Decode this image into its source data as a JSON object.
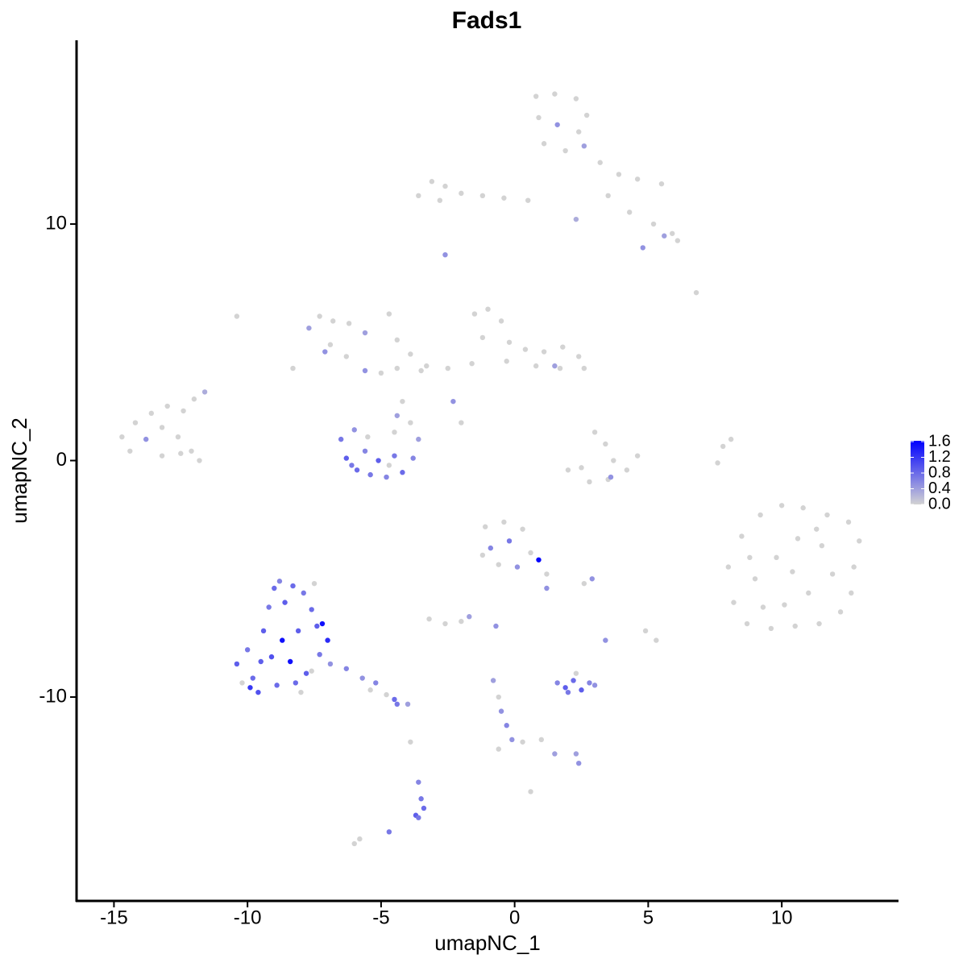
{
  "chart_data": {
    "type": "scatter",
    "title": "Fads1",
    "x_label": "umapNC_1",
    "y_label": "umapNC_2",
    "xlim": [
      -16.4,
      14.37
    ],
    "ylim": [
      -18.62,
      17.77
    ],
    "xticks": [
      -15,
      -10,
      -5,
      0,
      5,
      10
    ],
    "yticks": [
      -10,
      0,
      10
    ],
    "color_low": "#d3d3d3",
    "color_high": "#0000ff",
    "colorbar_lim": [
      0,
      1.62
    ],
    "colorbar_ticks": [
      {
        "value": 0,
        "label": "0.0"
      },
      {
        "value": 0.4,
        "label": "0.4"
      },
      {
        "value": 0.8,
        "label": "0.8"
      },
      {
        "value": 1.2,
        "label": "1.2"
      },
      {
        "value": 1.6,
        "label": "1.6"
      }
    ],
    "x": [
      0.8,
      1.5,
      2.3,
      2.7,
      0.9,
      1.6,
      2.4,
      1.1,
      1.9,
      2.6,
      3.2,
      3.9,
      4.6,
      5.5,
      3.5,
      4.3,
      5.2,
      5.9,
      6.1,
      4.8,
      5.6,
      2.3,
      6.8,
      -3.6,
      -3.1,
      -2.6,
      -2.0,
      -1.2,
      -0.4,
      0.5,
      -2.8,
      -2.6,
      -1.5,
      -1.0,
      -0.5,
      -1.2,
      -0.2,
      0.4,
      1.1,
      1.8,
      2.4,
      2.6,
      1.7,
      0.8,
      -0.3,
      -1.6,
      -2.5,
      -3.3,
      1.5,
      -2.3,
      -2.0,
      -14.7,
      -14.2,
      -13.6,
      -13.0,
      -12.4,
      -14.4,
      -13.8,
      -13.2,
      -12.6,
      -12.1,
      -11.8,
      -13.2,
      -12.5,
      -12.0,
      -11.6,
      -7.7,
      -7.3,
      -6.8,
      -6.2,
      -5.6,
      -6.9,
      -7.1,
      -6.3,
      -5.6,
      -5.0,
      -4.4,
      -4.7,
      -4.4,
      -3.9,
      -3.5,
      -4.2,
      -10.4,
      -8.3,
      -4.4,
      -6.5,
      -6.3,
      -5.9,
      -5.4,
      -4.8,
      -4.2,
      -3.8,
      -3.6,
      -3.9,
      -4.5,
      -5.5,
      -6.0,
      -5.1,
      -4.5,
      -5.6,
      -6.1,
      -4.7,
      3.0,
      3.4,
      3.7,
      4.2,
      4.6,
      3.5,
      2.8,
      2.0,
      3.6,
      2.5,
      7.8,
      7.6,
      8.1,
      8.0,
      8.5,
      9.2,
      10.0,
      10.8,
      11.7,
      12.5,
      12.9,
      12.7,
      12.6,
      12.2,
      11.4,
      10.5,
      9.6,
      8.7,
      8.2,
      9.0,
      9.8,
      10.6,
      11.5,
      11.9,
      11.0,
      10.1,
      9.3,
      10.4,
      8.8,
      11.3,
      -1.1,
      -0.4,
      0.3,
      -0.9,
      -0.2,
      0.6,
      0.9,
      -0.6,
      0.1,
      1.2,
      1.2,
      -1.2,
      2.9,
      2.6,
      -3.2,
      -2.6,
      -2.0,
      -1.7,
      -0.7,
      3.4,
      4.9,
      5.3,
      -10.4,
      -10.0,
      -9.8,
      -9.6,
      -9.4,
      -9.2,
      -9.0,
      -8.8,
      -8.6,
      -8.7,
      -8.4,
      -8.2,
      -7.8,
      -7.9,
      -7.6,
      -7.4,
      -7.3,
      -8.1,
      -9.1,
      -9.9,
      -8.0,
      -7.0,
      -7.2,
      -6.9,
      -10.2,
      -7.5,
      -8.3,
      -9.5,
      -8.9,
      -7.6,
      -6.3,
      -5.7,
      -5.2,
      -4.8,
      -4.4,
      -4.0,
      -4.5,
      -5.4,
      1.6,
      1.9,
      2.2,
      2.5,
      2.8,
      3.0,
      2.3,
      2.0,
      -0.8,
      -0.6,
      -0.5,
      -0.3,
      -0.1,
      0.3,
      1.0,
      1.5,
      2.3,
      2.4,
      -0.6,
      0.6,
      -3.6,
      -3.5,
      -3.4,
      -3.7,
      -3.6,
      -3.9,
      -4.7,
      -6.0,
      -5.8
    ],
    "y": [
      15.4,
      15.5,
      15.3,
      14.6,
      14.5,
      14.2,
      13.9,
      13.4,
      13.1,
      13.3,
      12.6,
      12.1,
      11.9,
      11.7,
      11.2,
      10.5,
      10.0,
      9.6,
      9.3,
      9.0,
      9.5,
      10.2,
      7.1,
      11.2,
      11.8,
      11.6,
      11.3,
      11.2,
      11.1,
      11.0,
      11.0,
      8.7,
      6.2,
      6.4,
      5.9,
      5.2,
      5.0,
      4.7,
      4.6,
      4.8,
      4.4,
      3.9,
      3.9,
      4.0,
      4.2,
      4.1,
      3.9,
      4.0,
      4.0,
      2.5,
      1.6,
      1.0,
      1.6,
      2.0,
      2.3,
      2.1,
      0.4,
      0.9,
      1.4,
      1.0,
      0.4,
      0.0,
      0.2,
      0.3,
      2.6,
      2.9,
      5.6,
      6.1,
      5.9,
      5.8,
      5.4,
      4.9,
      4.6,
      4.4,
      3.8,
      3.7,
      3.9,
      6.2,
      5.1,
      4.5,
      3.8,
      2.5,
      6.1,
      3.9,
      1.9,
      0.9,
      0.1,
      -0.4,
      -0.6,
      -0.7,
      -0.5,
      0.1,
      0.9,
      1.6,
      1.2,
      1.0,
      1.3,
      0.0,
      0.2,
      0.4,
      -0.2,
      -0.2,
      1.2,
      0.7,
      0.0,
      -0.4,
      0.2,
      -0.8,
      -0.9,
      -0.4,
      -0.7,
      -0.3,
      0.6,
      -0.1,
      0.9,
      -4.5,
      -3.2,
      -2.3,
      -1.9,
      -2.0,
      -2.3,
      -2.6,
      -3.4,
      -4.5,
      -5.6,
      -6.4,
      -6.9,
      -7.0,
      -7.1,
      -6.9,
      -6.0,
      -5.0,
      -4.1,
      -3.3,
      -3.6,
      -4.8,
      -5.6,
      -6.1,
      -6.2,
      -4.7,
      -4.1,
      -2.9,
      -2.8,
      -2.6,
      -2.9,
      -3.7,
      -3.4,
      -3.9,
      -4.2,
      -4.4,
      -4.5,
      -4.8,
      -5.4,
      -4.0,
      -5.0,
      -5.2,
      -6.7,
      -6.9,
      -6.8,
      -6.6,
      -7.0,
      -7.6,
      -7.2,
      -7.6,
      -8.6,
      -8.0,
      -9.2,
      -9.8,
      -7.2,
      -6.2,
      -5.4,
      -5.1,
      -6.0,
      -7.6,
      -8.5,
      -9.4,
      -9.0,
      -5.6,
      -6.3,
      -7.0,
      -8.2,
      -7.2,
      -8.3,
      -9.6,
      -9.8,
      -7.6,
      -6.9,
      -8.6,
      -9.4,
      -5.2,
      -5.3,
      -8.5,
      -9.5,
      -8.9,
      -8.8,
      -9.2,
      -9.4,
      -9.9,
      -10.3,
      -10.3,
      -10.1,
      -9.7,
      -9.4,
      -9.6,
      -9.3,
      -9.7,
      -9.4,
      -9.5,
      -9.0,
      -9.8,
      -9.3,
      -10.0,
      -10.6,
      -11.2,
      -11.8,
      -11.9,
      -11.8,
      -12.4,
      -12.4,
      -12.8,
      -12.2,
      -14.0,
      -13.6,
      -14.3,
      -14.7,
      -15.0,
      -15.1,
      -11.9,
      -15.7,
      -16.2,
      -16.0
    ],
    "values": [
      0,
      0,
      0,
      0,
      0,
      0.5,
      0,
      0,
      0,
      0.4,
      0,
      0,
      0,
      0,
      0,
      0,
      0,
      0,
      0,
      0.5,
      0.4,
      0.3,
      0,
      0,
      0,
      0,
      0,
      0,
      0,
      0,
      0,
      0.5,
      0,
      0,
      0,
      0,
      0,
      0,
      0,
      0,
      0,
      0,
      0,
      0,
      0,
      0,
      0,
      0,
      0.4,
      0.5,
      0,
      0,
      0,
      0,
      0,
      0,
      0,
      0.5,
      0,
      0,
      0,
      0,
      0,
      0,
      0,
      0.3,
      0.4,
      0,
      0,
      0,
      0.4,
      0,
      0.5,
      0,
      0.5,
      0,
      0,
      0,
      0,
      0,
      0,
      0,
      0,
      0,
      0.4,
      0.7,
      0.9,
      0.8,
      0.7,
      0.6,
      0.8,
      0.6,
      0.4,
      0,
      0,
      0,
      0.5,
      0.9,
      0.7,
      0.6,
      0.7,
      0,
      0,
      0,
      0,
      0,
      0,
      0,
      0,
      0,
      0.5,
      0,
      0,
      0,
      0,
      0,
      0,
      0,
      0,
      0,
      0,
      0,
      0,
      0,
      0,
      0,
      0,
      0,
      0,
      0,
      0,
      0,
      0,
      0,
      0,
      0,
      0,
      0,
      0,
      0,
      0,
      0,
      0,
      0,
      0,
      0.6,
      0.7,
      0,
      1.6,
      0,
      0.5,
      0,
      0.5,
      0,
      0.5,
      0,
      0,
      0,
      0,
      0.4,
      0.5,
      0.5,
      0,
      0,
      0.9,
      0.7,
      0.8,
      1.0,
      0.9,
      0.7,
      0.8,
      0.6,
      0.9,
      1.5,
      1.5,
      0.8,
      0.9,
      0.7,
      0.8,
      0.9,
      0.7,
      0.9,
      1.0,
      1.2,
      0,
      1.3,
      1.5,
      0.5,
      0,
      0,
      0.8,
      0.9,
      0.8,
      0,
      0.6,
      0.5,
      0.6,
      0,
      0.7,
      0.4,
      0.8,
      0,
      0.6,
      0.9,
      0.8,
      0.9,
      0.6,
      0.5,
      0,
      0.7,
      0.4,
      0,
      0.5,
      0.6,
      0.5,
      0,
      0,
      0.4,
      0.4,
      0.5,
      0,
      0,
      0.6,
      0.7,
      0.8,
      0.9,
      0.7,
      0,
      0.7,
      0,
      0
    ]
  }
}
